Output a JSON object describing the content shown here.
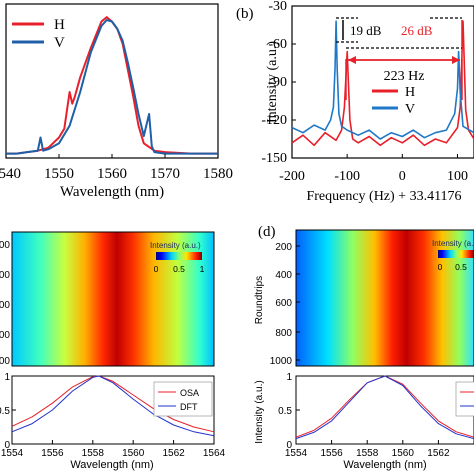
{
  "figure": {
    "panel_b_label": "(b)",
    "panel_d_label": "(d)"
  },
  "chart_data": [
    {
      "id": "a",
      "type": "line",
      "xlabel": "Wavelength (nm)",
      "ylabel": "",
      "xticks": [
        "1540",
        "1550",
        "1560",
        "1570",
        "1580"
      ],
      "xlim": [
        1540,
        1580
      ],
      "ylim": [
        0,
        1.05
      ],
      "legend": [
        "H",
        "V"
      ],
      "legend_position": "top-left",
      "series": [
        {
          "name": "H",
          "color": "#e8202a",
          "x": [
            1540,
            1542,
            1544,
            1546,
            1548,
            1550,
            1551,
            1552,
            1552.5,
            1553,
            1554,
            1556,
            1558,
            1559,
            1560,
            1561,
            1562,
            1563,
            1564,
            1565,
            1566,
            1568,
            1570,
            1575,
            1580
          ],
          "y": [
            0.03,
            0.03,
            0.04,
            0.05,
            0.07,
            0.14,
            0.2,
            0.45,
            0.37,
            0.42,
            0.55,
            0.75,
            0.93,
            0.96,
            0.93,
            0.88,
            0.78,
            0.6,
            0.42,
            0.22,
            0.1,
            0.05,
            0.04,
            0.03,
            0.03
          ]
        },
        {
          "name": "V",
          "color": "#1f5fa8",
          "x": [
            1540,
            1542,
            1544,
            1546,
            1546.5,
            1547,
            1548,
            1550,
            1552,
            1554,
            1556,
            1558,
            1559,
            1560,
            1561,
            1562,
            1563,
            1564,
            1565,
            1566,
            1567,
            1567.5,
            1568,
            1570,
            1575,
            1580
          ],
          "y": [
            0.03,
            0.03,
            0.04,
            0.05,
            0.14,
            0.05,
            0.06,
            0.1,
            0.22,
            0.45,
            0.72,
            0.9,
            0.94,
            0.93,
            0.88,
            0.8,
            0.65,
            0.48,
            0.3,
            0.15,
            0.3,
            0.08,
            0.04,
            0.03,
            0.03,
            0.03
          ]
        }
      ]
    },
    {
      "id": "b",
      "type": "line",
      "xlabel": "Frequency (Hz) + 33.41176",
      "ylabel": "Intensity (a.u.)",
      "xticks": [
        "-200",
        "-100",
        "0",
        "100"
      ],
      "yticks": [
        "-30",
        "-60",
        "-90",
        "-120",
        "-150"
      ],
      "xlim": [
        -200,
        130
      ],
      "ylim": [
        -150,
        -30
      ],
      "legend": [
        "H",
        "V"
      ],
      "annotations": [
        "19 dB",
        "26 dB",
        "223 Hz"
      ],
      "series": [
        {
          "name": "H",
          "color": "#e8202a",
          "x": [
            -200,
            -180,
            -160,
            -140,
            -120,
            -110,
            -105,
            -100,
            -95,
            -90,
            -80,
            -60,
            -40,
            -20,
            0,
            20,
            40,
            60,
            80,
            100,
            105,
            108,
            110,
            112,
            115,
            120,
            130
          ],
          "y": [
            -138,
            -132,
            -140,
            -130,
            -136,
            -128,
            -110,
            -66,
            -120,
            -135,
            -138,
            -133,
            -140,
            -134,
            -138,
            -132,
            -140,
            -135,
            -138,
            -126,
            -110,
            -70,
            -42,
            -70,
            -112,
            -128,
            -135
          ]
        },
        {
          "name": "V",
          "color": "#1f78c8",
          "x": [
            -200,
            -180,
            -160,
            -140,
            -130,
            -125,
            -122,
            -120,
            -118,
            -115,
            -110,
            -100,
            -80,
            -60,
            -40,
            -20,
            0,
            20,
            40,
            60,
            80,
            95,
            100,
            102,
            105,
            110,
            130
          ],
          "y": [
            -126,
            -130,
            -124,
            -128,
            -120,
            -110,
            -80,
            -42,
            -80,
            -115,
            -125,
            -128,
            -132,
            -128,
            -135,
            -130,
            -133,
            -128,
            -134,
            -130,
            -128,
            -115,
            -95,
            -66,
            -98,
            -125,
            -130
          ]
        }
      ]
    },
    {
      "id": "c",
      "type": "heatmap",
      "ylabel": "",
      "ytick_labels": [
        "00",
        "00",
        "00",
        "00",
        "00"
      ],
      "colorbar_title": "Intensity (a.u.)",
      "colorbar_ticks": [
        "0",
        "0.5",
        "1"
      ]
    },
    {
      "id": "c2",
      "type": "line",
      "xlabel": "Wavelength (nm)",
      "ylabel": "",
      "xticks": [
        "1554",
        "1556",
        "1558",
        "1560",
        "1562",
        "1564"
      ],
      "yticks": [
        "1",
        "0.5",
        "0"
      ],
      "xlim": [
        1554,
        1564
      ],
      "ylim": [
        0,
        1
      ],
      "legend": [
        "OSA",
        "DFT"
      ],
      "series": [
        {
          "name": "OSA",
          "color": "#e8202a",
          "x": [
            1554,
            1555,
            1556,
            1557,
            1558,
            1558.3,
            1559,
            1560,
            1561,
            1562,
            1563,
            1564
          ],
          "y": [
            0.26,
            0.4,
            0.6,
            0.84,
            0.99,
            1.0,
            0.92,
            0.72,
            0.52,
            0.36,
            0.25,
            0.18
          ]
        },
        {
          "name": "DFT",
          "color": "#2233cc",
          "x": [
            1554,
            1555,
            1556,
            1557,
            1558,
            1558.3,
            1559,
            1560,
            1561,
            1562,
            1563,
            1564
          ],
          "y": [
            0.18,
            0.3,
            0.5,
            0.78,
            0.98,
            1.0,
            0.9,
            0.66,
            0.44,
            0.28,
            0.18,
            0.12
          ]
        }
      ]
    },
    {
      "id": "d",
      "type": "heatmap",
      "ylabel": "Roundtrips",
      "yticks": [
        "200",
        "400",
        "600",
        "800",
        "1000"
      ],
      "colorbar_title": "Intensity (a.u.)",
      "colorbar_ticks": [
        "0",
        "0.5",
        "1"
      ]
    },
    {
      "id": "d2",
      "type": "line",
      "xlabel": "Wavelength (nm)",
      "ylabel": "Intensity (a.u.)",
      "xticks": [
        "1554",
        "1556",
        "1558",
        "1560",
        "1562"
      ],
      "yticks": [
        "1",
        "0.5",
        "0"
      ],
      "xlim": [
        1554,
        1564
      ],
      "ylim": [
        0,
        1
      ],
      "series": [
        {
          "color": "#e8202a",
          "x": [
            1554,
            1555,
            1556,
            1557,
            1558,
            1559,
            1560,
            1561,
            1562,
            1563,
            1564
          ],
          "y": [
            0.1,
            0.2,
            0.38,
            0.65,
            0.9,
            1.0,
            0.88,
            0.6,
            0.34,
            0.18,
            0.1
          ]
        },
        {
          "color": "#2233cc",
          "x": [
            1554,
            1555,
            1556,
            1557,
            1558,
            1559,
            1560,
            1561,
            1562,
            1563,
            1564
          ],
          "y": [
            0.08,
            0.17,
            0.34,
            0.62,
            0.9,
            1.0,
            0.86,
            0.56,
            0.3,
            0.15,
            0.08
          ]
        }
      ]
    }
  ]
}
